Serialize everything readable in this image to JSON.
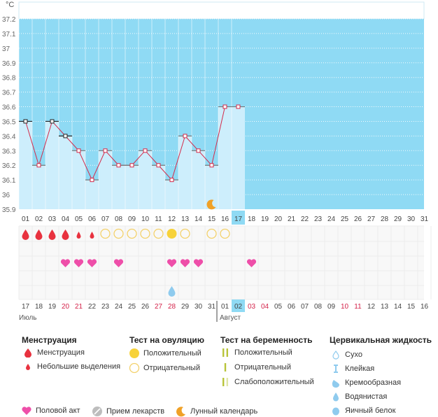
{
  "chart_data": {
    "type": "line",
    "unit_label": "°C",
    "y_ticks": [
      "37.2",
      "37.1",
      "37",
      "36.9",
      "36.8",
      "36.7",
      "36.6",
      "36.5",
      "36.4",
      "36.3",
      "36.2",
      "36.1",
      "36",
      "35.9"
    ],
    "ylim": [
      35.9,
      37.2
    ],
    "cycle_days": [
      "01",
      "02",
      "03",
      "04",
      "05",
      "06",
      "07",
      "08",
      "09",
      "10",
      "11",
      "12",
      "13",
      "14",
      "15",
      "16",
      "17",
      "18",
      "19",
      "20",
      "21",
      "22",
      "23",
      "24",
      "25",
      "26",
      "27",
      "28",
      "29",
      "30",
      "31"
    ],
    "current_cycle_day_index": 16,
    "series": [
      {
        "values": [
          36.5,
          36.2,
          36.5,
          36.4,
          36.3,
          36.1,
          36.3,
          36.2,
          36.2,
          36.3,
          36.2,
          36.1,
          36.4,
          36.3,
          36.2,
          36.6,
          36.6
        ]
      }
    ],
    "line_color": "#d42a4a",
    "fill_color": "#cdeefc",
    "bg_color": "#8fdaf4",
    "date_labels": [
      "17",
      "18",
      "19",
      "20",
      "21",
      "22",
      "23",
      "24",
      "25",
      "26",
      "27",
      "28",
      "29",
      "30",
      "31",
      "01",
      "02",
      "03",
      "04",
      "05",
      "06",
      "07",
      "08",
      "09",
      "10",
      "11",
      "12",
      "13",
      "14",
      "15",
      "16"
    ],
    "weekend_date_indices": [
      3,
      4,
      10,
      11,
      17,
      18,
      24,
      25
    ],
    "current_date_index": 16,
    "month_labels": [
      "Июль",
      "Август"
    ],
    "menstruation": [
      2,
      2,
      2,
      2,
      1,
      1
    ],
    "ovulation_tests": [
      null,
      null,
      null,
      null,
      null,
      null,
      "negative",
      "negative",
      "negative",
      "negative",
      "negative",
      "positive",
      "negative",
      null,
      "negative",
      "negative"
    ],
    "intercourse_days": [
      3,
      4,
      5,
      7,
      11,
      12,
      13,
      17
    ],
    "cervical_fluid": {
      "day_index": 11,
      "type": "watery"
    },
    "lunar_day_index": 14
  },
  "legend": {
    "menstruation": {
      "title": "Менструация",
      "items": [
        "Менструация",
        "Небольшие выделения"
      ]
    },
    "ovulation": {
      "title": "Тест на овуляцию",
      "items": [
        "Положительный",
        "Отрицательный"
      ]
    },
    "pregnancy": {
      "title": "Тест на беременность",
      "items": [
        "Положительный",
        "Отрицательный",
        "Слабоположительный"
      ]
    },
    "cervical": {
      "title": "Цервикальная жидкость",
      "items": [
        "Сухо",
        "Клейкая",
        "Кремообразная",
        "Водянистая",
        "Яичный белок"
      ]
    },
    "bottom": [
      "Половой акт",
      "Прием лекарств",
      "Лунный календарь"
    ]
  },
  "colors": {
    "drop": "#e8323f",
    "heart": "#ee4fa9",
    "ovulation_positive": "#f7d23a",
    "ovulation_negative": "#f3d16b",
    "pregnancy_test": "#b8c43a",
    "cervical": "#8fcbee",
    "moon": "#f0a127",
    "highlight": "#8fdaf4"
  }
}
